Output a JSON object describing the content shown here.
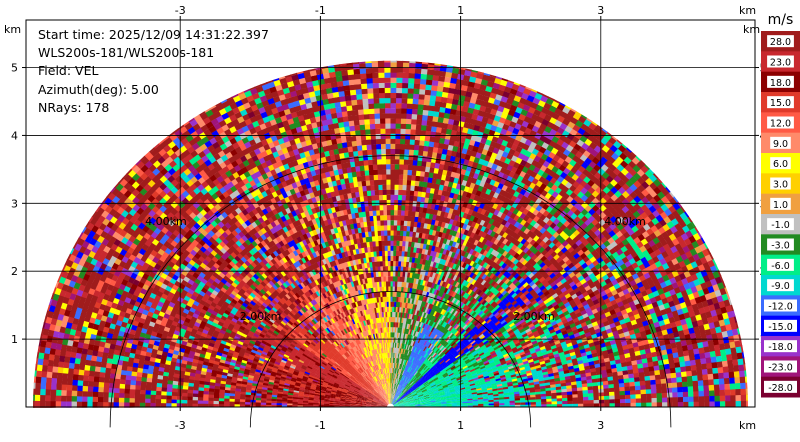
{
  "chart_data": {
    "type": "heatmap",
    "description_text": {
      "start_time": "Start time: 2025/12/09 14:31:22.397",
      "instrument": "WLS200s-181/WLS200s-181",
      "field": "Field: VEL",
      "azimuth": "Azimuth(deg): 5.00",
      "nrays": "NRays: 178"
    },
    "x_unit": "km",
    "y_unit": "km",
    "xlim": [
      -5.2,
      5.2
    ],
    "ylim": [
      0,
      5.7
    ],
    "x_ticks": [
      -3,
      -1,
      1,
      3
    ],
    "x_tick_labels": [
      "-3",
      "-1",
      "1",
      "3"
    ],
    "y_ticks": [
      1,
      2,
      3,
      4,
      5
    ],
    "y_tick_labels": [
      "1",
      "2",
      "3",
      "4",
      "5"
    ],
    "range_rings_km": [
      2.0,
      4.0
    ],
    "range_ring_labels": [
      "2.00km",
      "2.00km",
      "4.00km",
      "4.00km"
    ],
    "max_range_km": 5.1,
    "grid": true,
    "colorbar": {
      "unit": "m/s",
      "tick_labels": [
        "28.0",
        "23.0",
        "18.0",
        "15.0",
        "12.0",
        "9.0",
        "6.0",
        "3.0",
        "1.0",
        "-1.0",
        "-3.0",
        "-6.0",
        "-9.0",
        "-12.0",
        "-15.0",
        "-18.0",
        "-23.0",
        "-28.0"
      ],
      "colors": [
        "#a01c1c",
        "#c8282e",
        "#8b0000",
        "#e03a2a",
        "#ff5a45",
        "#ff8a6a",
        "#ffff00",
        "#ffd000",
        "#f0a040",
        "#c0c0c0",
        "#228b22",
        "#00ee88",
        "#00d8d0",
        "#3a6cff",
        "#0000ff",
        "#9932cc",
        "#a0147a",
        "#7a0030"
      ]
    }
  }
}
